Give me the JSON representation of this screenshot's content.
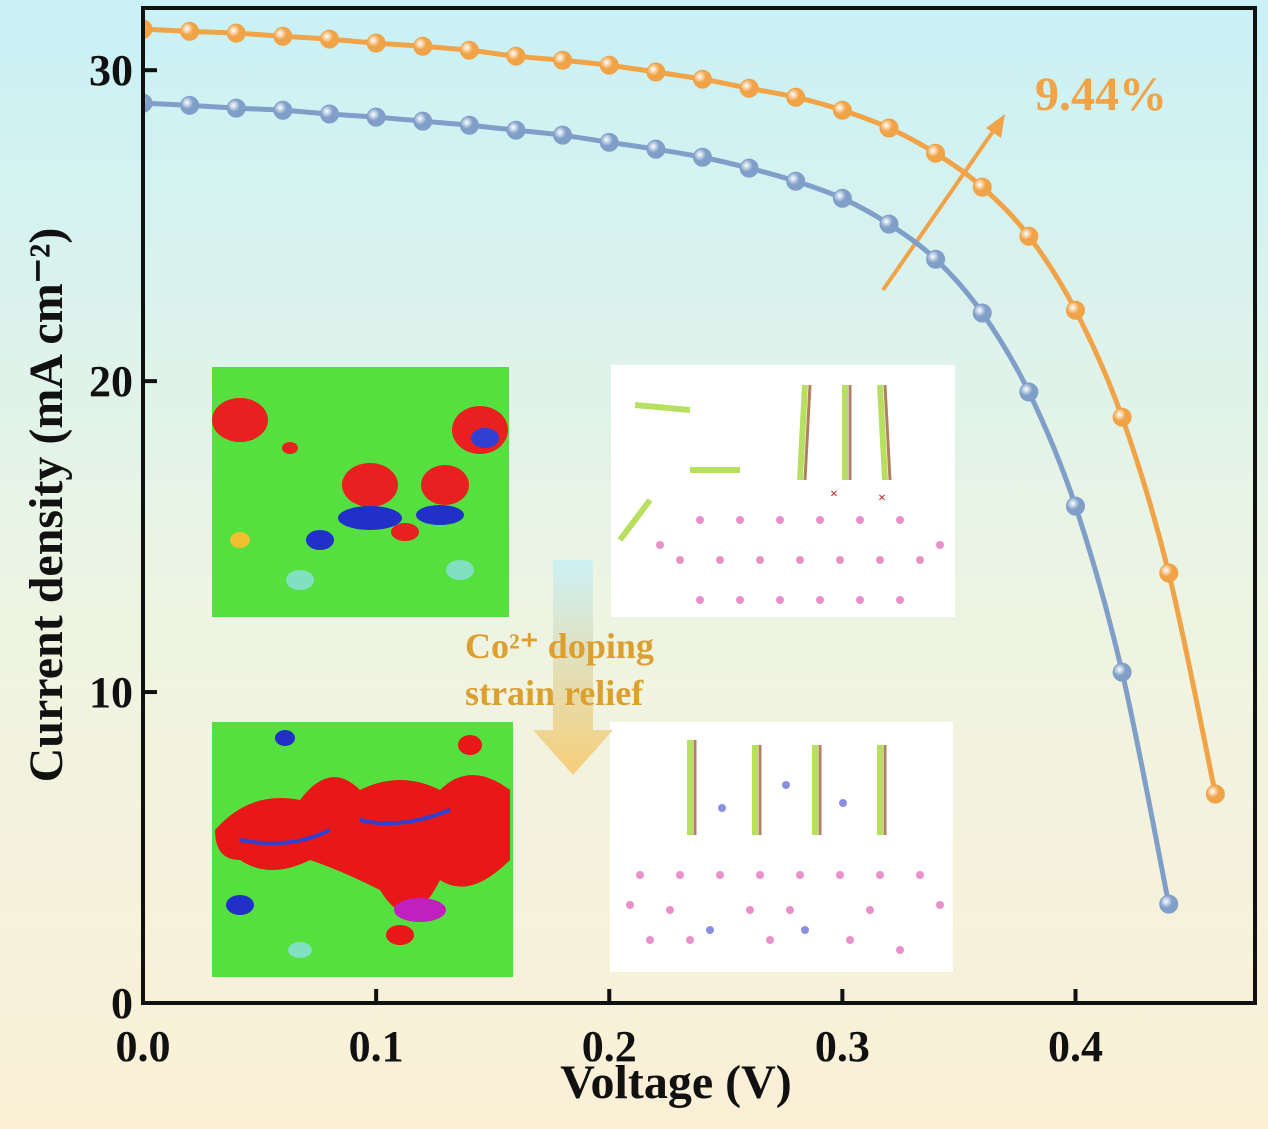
{
  "chart_data": {
    "type": "line",
    "xlabel": "Voltage (V)",
    "ylabel": "Current density (mA cm⁻²)",
    "xlim": [
      0,
      0.477
    ],
    "ylim": [
      0,
      32
    ],
    "xticks": [
      {
        "value": 0,
        "label": "0.0"
      },
      0.1,
      0.2,
      0.3,
      0.4
    ],
    "yticks": [
      0,
      10,
      20,
      30
    ],
    "annotations": [
      "9.44%",
      "Co²⁺ doping",
      "strain relief"
    ],
    "series": [
      {
        "color": "#f0a347",
        "x": [
          0,
          0.02,
          0.04,
          0.06,
          0.08,
          0.1,
          0.12,
          0.14,
          0.16,
          0.18,
          0.2,
          0.22,
          0.24,
          0.26,
          0.28,
          0.3,
          0.32,
          0.34,
          0.36,
          0.38,
          0.4,
          0.42,
          0.44,
          0.46
        ],
        "values": [
          31.32,
          31.25,
          31.19,
          31.09,
          31.0,
          30.87,
          30.77,
          30.64,
          30.45,
          30.32,
          30.16,
          29.94,
          29.71,
          29.42,
          29.13,
          28.71,
          28.14,
          27.33,
          26.24,
          24.66,
          22.28,
          18.84,
          13.83,
          6.72
        ]
      },
      {
        "color": "#7f9fc8",
        "x": [
          0,
          0.02,
          0.04,
          0.06,
          0.08,
          0.1,
          0.12,
          0.14,
          0.16,
          0.18,
          0.2,
          0.22,
          0.24,
          0.26,
          0.28,
          0.3,
          0.32,
          0.34,
          0.36,
          0.38,
          0.4,
          0.42,
          0.44
        ],
        "values": [
          28.94,
          28.87,
          28.78,
          28.71,
          28.59,
          28.49,
          28.36,
          28.23,
          28.07,
          27.91,
          27.68,
          27.46,
          27.2,
          26.85,
          26.43,
          25.88,
          25.05,
          23.92,
          22.19,
          19.65,
          15.98,
          10.64,
          3.18
        ]
      }
    ]
  }
}
